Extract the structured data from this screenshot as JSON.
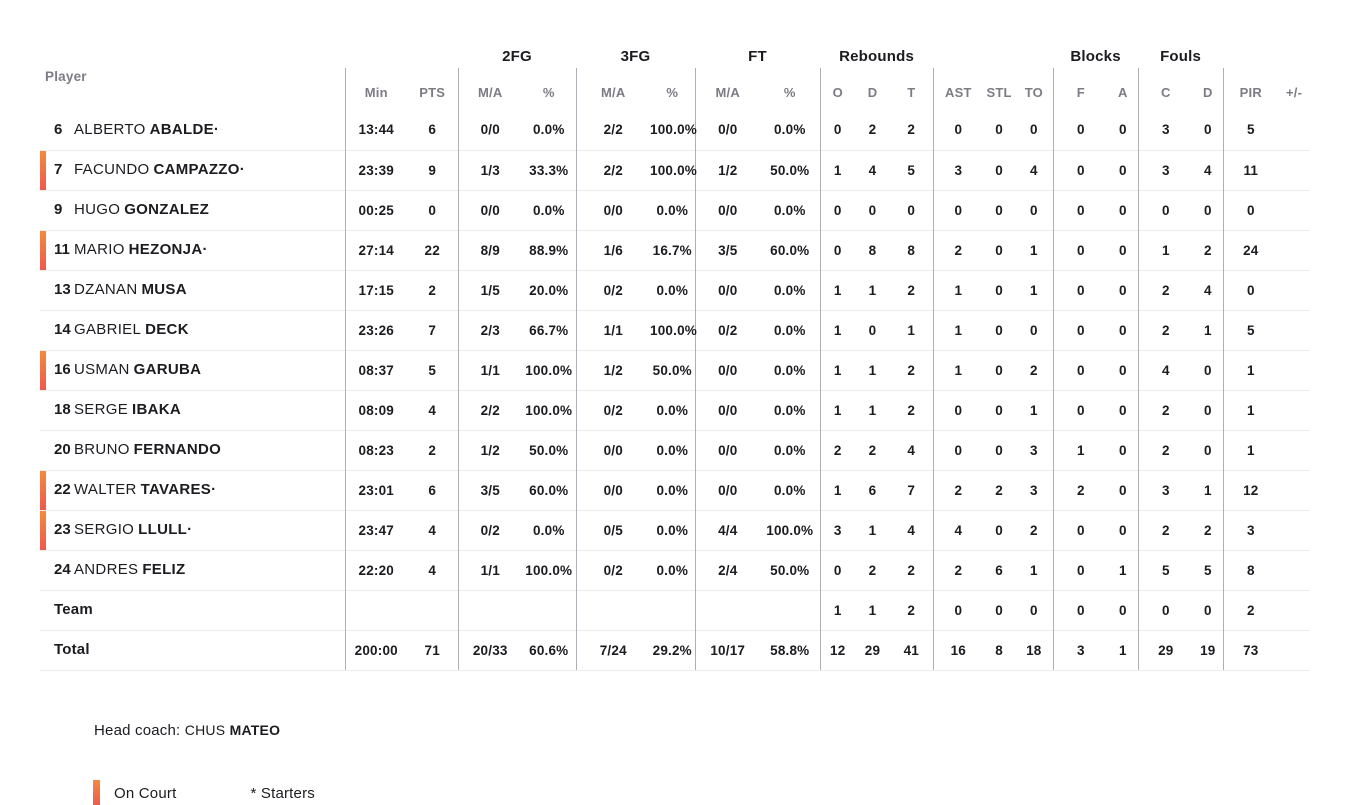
{
  "colors": {
    "accent_top": "#f28a3d",
    "accent_bottom": "#ee584f",
    "text_dark": "#1b1b20",
    "text_gray": "#7c7c84",
    "divider": "#aeaeb4",
    "row_line": "#ececef"
  },
  "table": {
    "starter_mark": "·",
    "group_headers": {
      "fg2": "2FG",
      "fg3": "3FG",
      "ft": "FT",
      "rebounds": "Rebounds",
      "blocks": "Blocks",
      "fouls": "Fouls"
    },
    "headers": {
      "player": "Player",
      "min": "Min",
      "pts": "PTS",
      "ma": "M/A",
      "pct": "%",
      "reb_o": "O",
      "reb_d": "D",
      "reb_t": "T",
      "ast": "AST",
      "stl": "STL",
      "to": "TO",
      "blk_f": "F",
      "blk_a": "A",
      "foul_c": "C",
      "foul_d": "D",
      "pir": "PIR",
      "plus_minus": "+/-"
    },
    "rows": [
      {
        "num": "6",
        "first": "ALBERTO",
        "last": "ABALDE",
        "starter": true,
        "oncourt": false,
        "min": "13:44",
        "pts": "6",
        "f2": "0/0",
        "f2p": "0.0%",
        "f3": "2/2",
        "f3p": "100.0%",
        "ft": "0/0",
        "ftp": "0.0%",
        "ro": "0",
        "rd": "2",
        "rt": "2",
        "ast": "0",
        "stl": "0",
        "to": "0",
        "bf": "0",
        "ba": "0",
        "fc": "3",
        "fd": "0",
        "pir": "5",
        "pm": ""
      },
      {
        "num": "7",
        "first": "FACUNDO",
        "last": "CAMPAZZO",
        "starter": true,
        "oncourt": true,
        "min": "23:39",
        "pts": "9",
        "f2": "1/3",
        "f2p": "33.3%",
        "f3": "2/2",
        "f3p": "100.0%",
        "ft": "1/2",
        "ftp": "50.0%",
        "ro": "1",
        "rd": "4",
        "rt": "5",
        "ast": "3",
        "stl": "0",
        "to": "4",
        "bf": "0",
        "ba": "0",
        "fc": "3",
        "fd": "4",
        "pir": "11",
        "pm": ""
      },
      {
        "num": "9",
        "first": "HUGO",
        "last": "GONZALEZ",
        "starter": false,
        "oncourt": false,
        "min": "00:25",
        "pts": "0",
        "f2": "0/0",
        "f2p": "0.0%",
        "f3": "0/0",
        "f3p": "0.0%",
        "ft": "0/0",
        "ftp": "0.0%",
        "ro": "0",
        "rd": "0",
        "rt": "0",
        "ast": "0",
        "stl": "0",
        "to": "0",
        "bf": "0",
        "ba": "0",
        "fc": "0",
        "fd": "0",
        "pir": "0",
        "pm": ""
      },
      {
        "num": "11",
        "first": "MARIO",
        "last": "HEZONJA",
        "starter": true,
        "oncourt": true,
        "min": "27:14",
        "pts": "22",
        "f2": "8/9",
        "f2p": "88.9%",
        "f3": "1/6",
        "f3p": "16.7%",
        "ft": "3/5",
        "ftp": "60.0%",
        "ro": "0",
        "rd": "8",
        "rt": "8",
        "ast": "2",
        "stl": "0",
        "to": "1",
        "bf": "0",
        "ba": "0",
        "fc": "1",
        "fd": "2",
        "pir": "24",
        "pm": ""
      },
      {
        "num": "13",
        "first": "DZANAN",
        "last": "MUSA",
        "starter": false,
        "oncourt": false,
        "min": "17:15",
        "pts": "2",
        "f2": "1/5",
        "f2p": "20.0%",
        "f3": "0/2",
        "f3p": "0.0%",
        "ft": "0/0",
        "ftp": "0.0%",
        "ro": "1",
        "rd": "1",
        "rt": "2",
        "ast": "1",
        "stl": "0",
        "to": "1",
        "bf": "0",
        "ba": "0",
        "fc": "2",
        "fd": "4",
        "pir": "0",
        "pm": ""
      },
      {
        "num": "14",
        "first": "GABRIEL",
        "last": "DECK",
        "starter": false,
        "oncourt": false,
        "min": "23:26",
        "pts": "7",
        "f2": "2/3",
        "f2p": "66.7%",
        "f3": "1/1",
        "f3p": "100.0%",
        "ft": "0/2",
        "ftp": "0.0%",
        "ro": "1",
        "rd": "0",
        "rt": "1",
        "ast": "1",
        "stl": "0",
        "to": "0",
        "bf": "0",
        "ba": "0",
        "fc": "2",
        "fd": "1",
        "pir": "5",
        "pm": ""
      },
      {
        "num": "16",
        "first": "USMAN",
        "last": "GARUBA",
        "starter": false,
        "oncourt": true,
        "min": "08:37",
        "pts": "5",
        "f2": "1/1",
        "f2p": "100.0%",
        "f3": "1/2",
        "f3p": "50.0%",
        "ft": "0/0",
        "ftp": "0.0%",
        "ro": "1",
        "rd": "1",
        "rt": "2",
        "ast": "1",
        "stl": "0",
        "to": "2",
        "bf": "0",
        "ba": "0",
        "fc": "4",
        "fd": "0",
        "pir": "1",
        "pm": ""
      },
      {
        "num": "18",
        "first": "SERGE",
        "last": "IBAKA",
        "starter": false,
        "oncourt": false,
        "min": "08:09",
        "pts": "4",
        "f2": "2/2",
        "f2p": "100.0%",
        "f3": "0/2",
        "f3p": "0.0%",
        "ft": "0/0",
        "ftp": "0.0%",
        "ro": "1",
        "rd": "1",
        "rt": "2",
        "ast": "0",
        "stl": "0",
        "to": "1",
        "bf": "0",
        "ba": "0",
        "fc": "2",
        "fd": "0",
        "pir": "1",
        "pm": ""
      },
      {
        "num": "20",
        "first": "BRUNO",
        "last": "FERNANDO",
        "starter": false,
        "oncourt": false,
        "min": "08:23",
        "pts": "2",
        "f2": "1/2",
        "f2p": "50.0%",
        "f3": "0/0",
        "f3p": "0.0%",
        "ft": "0/0",
        "ftp": "0.0%",
        "ro": "2",
        "rd": "2",
        "rt": "4",
        "ast": "0",
        "stl": "0",
        "to": "3",
        "bf": "1",
        "ba": "0",
        "fc": "2",
        "fd": "0",
        "pir": "1",
        "pm": ""
      },
      {
        "num": "22",
        "first": "WALTER",
        "last": "TAVARES",
        "starter": true,
        "oncourt": true,
        "min": "23:01",
        "pts": "6",
        "f2": "3/5",
        "f2p": "60.0%",
        "f3": "0/0",
        "f3p": "0.0%",
        "ft": "0/0",
        "ftp": "0.0%",
        "ro": "1",
        "rd": "6",
        "rt": "7",
        "ast": "2",
        "stl": "2",
        "to": "3",
        "bf": "2",
        "ba": "0",
        "fc": "3",
        "fd": "1",
        "pir": "12",
        "pm": ""
      },
      {
        "num": "23",
        "first": "SERGIO",
        "last": "LLULL",
        "starter": true,
        "oncourt": true,
        "min": "23:47",
        "pts": "4",
        "f2": "0/2",
        "f2p": "0.0%",
        "f3": "0/5",
        "f3p": "0.0%",
        "ft": "4/4",
        "ftp": "100.0%",
        "ro": "3",
        "rd": "1",
        "rt": "4",
        "ast": "4",
        "stl": "0",
        "to": "2",
        "bf": "0",
        "ba": "0",
        "fc": "2",
        "fd": "2",
        "pir": "3",
        "pm": ""
      },
      {
        "num": "24",
        "first": "ANDRES",
        "last": "FELIZ",
        "starter": false,
        "oncourt": false,
        "min": "22:20",
        "pts": "4",
        "f2": "1/1",
        "f2p": "100.0%",
        "f3": "0/2",
        "f3p": "0.0%",
        "ft": "2/4",
        "ftp": "50.0%",
        "ro": "0",
        "rd": "2",
        "rt": "2",
        "ast": "2",
        "stl": "6",
        "to": "1",
        "bf": "0",
        "ba": "1",
        "fc": "5",
        "fd": "5",
        "pir": "8",
        "pm": ""
      },
      {
        "label": "Team",
        "min": "",
        "pts": "",
        "f2": "",
        "f2p": "",
        "f3": "",
        "f3p": "",
        "ft": "",
        "ftp": "",
        "ro": "1",
        "rd": "1",
        "rt": "2",
        "ast": "0",
        "stl": "0",
        "to": "0",
        "bf": "0",
        "ba": "0",
        "fc": "0",
        "fd": "0",
        "pir": "2",
        "pm": ""
      },
      {
        "label": "Total",
        "min": "200:00",
        "pts": "71",
        "f2": "20/33",
        "f2p": "60.6%",
        "f3": "7/24",
        "f3p": "29.2%",
        "ft": "10/17",
        "ftp": "58.8%",
        "ro": "12",
        "rd": "29",
        "rt": "41",
        "ast": "16",
        "stl": "8",
        "to": "18",
        "bf": "3",
        "ba": "1",
        "fc": "29",
        "fd": "19",
        "pir": "73",
        "pm": ""
      }
    ]
  },
  "footer": {
    "head_coach_label": "Head coach:",
    "coach_first_name": "CHUS",
    "coach_last_name": "MATEO",
    "legend_on_court": "On Court",
    "legend_starters": "* Starters"
  }
}
